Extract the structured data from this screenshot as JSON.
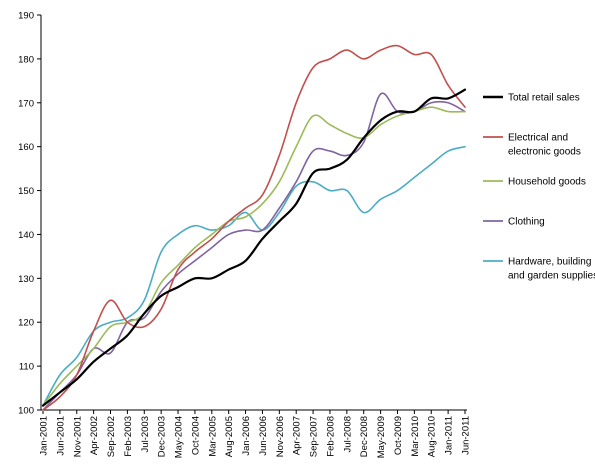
{
  "chart_data": {
    "type": "line",
    "title": "",
    "xlabel": "",
    "ylabel": "",
    "ylim": [
      100,
      190
    ],
    "yticks": [
      100,
      110,
      120,
      130,
      140,
      150,
      160,
      170,
      180,
      190
    ],
    "grid": false,
    "legend_position": "right",
    "x": [
      "Jan-2001",
      "Jun-2001",
      "Nov-2001",
      "Apr-2002",
      "Sep-2002",
      "Feb-2003",
      "Jul-2003",
      "Dec-2003",
      "May-2004",
      "Oct-2004",
      "Mar-2005",
      "Aug-2005",
      "Jan-2006",
      "Jun-2006",
      "Nov-2006",
      "Apr-2007",
      "Sep-2007",
      "Feb-2008",
      "Jul-2008",
      "Dec-2008",
      "May-2009",
      "Oct-2009",
      "Mar-2010",
      "Aug-2010",
      "Jan-2011",
      "Jun-2011"
    ],
    "series": [
      {
        "name": "Total retail sales",
        "color": "#000000",
        "width": 2.2,
        "values": [
          101,
          104,
          107,
          111,
          114,
          117,
          122,
          126,
          128,
          130,
          130,
          132,
          134,
          139,
          143,
          147,
          154,
          155,
          157,
          162,
          166,
          168,
          168,
          171,
          171,
          173
        ]
      },
      {
        "name": "Electrical and electronic goods",
        "color": "#c0504d",
        "width": 1.6,
        "values": [
          100,
          103,
          108,
          118,
          125,
          120,
          119,
          123,
          132,
          136,
          139,
          143,
          146,
          149,
          158,
          170,
          178,
          180,
          182,
          180,
          182,
          183,
          181,
          181,
          174,
          169
        ]
      },
      {
        "name": "Household goods",
        "color": "#9bbb59",
        "width": 1.6,
        "values": [
          101,
          106,
          110,
          114,
          119,
          120,
          122,
          129,
          133,
          137,
          140,
          143,
          144,
          147,
          152,
          160,
          167,
          165,
          163,
          162,
          165,
          167,
          168,
          169,
          168,
          168
        ]
      },
      {
        "name": "Clothing",
        "color": "#8064a2",
        "width": 1.6,
        "values": [
          100,
          104,
          108,
          114,
          113,
          120,
          121,
          127,
          131,
          134,
          137,
          140,
          141,
          141,
          146,
          152,
          159,
          159,
          158,
          161,
          172,
          168,
          168,
          170,
          170,
          168
        ]
      },
      {
        "name": "Hardware, building and garden supplies",
        "color": "#4bacc6",
        "width": 1.6,
        "values": [
          101,
          108,
          112,
          118,
          120,
          121,
          125,
          136,
          140,
          142,
          141,
          142,
          145,
          141,
          145,
          151,
          152,
          150,
          150,
          145,
          148,
          150,
          153,
          156,
          159,
          160
        ]
      }
    ],
    "legend": [
      {
        "lines": [
          "Total retail sales"
        ]
      },
      {
        "lines": [
          "Electrical and",
          "electronic goods"
        ]
      },
      {
        "lines": [
          "Household goods"
        ]
      },
      {
        "lines": [
          "Clothing"
        ]
      },
      {
        "lines": [
          "Hardware, building",
          "and garden supplies"
        ]
      }
    ]
  }
}
